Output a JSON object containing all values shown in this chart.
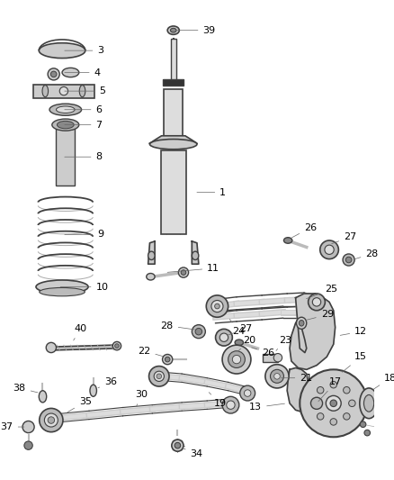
{
  "bg_color": "#ffffff",
  "line_color": "#404040",
  "gray1": "#aaaaaa",
  "gray2": "#bbbbbb",
  "gray3": "#cccccc",
  "gray4": "#dddddd",
  "gray5": "#888888",
  "dark": "#555555",
  "figsize": [
    4.38,
    5.33
  ],
  "dpi": 100,
  "xlim": [
    0,
    438
  ],
  "ylim": [
    0,
    533
  ]
}
